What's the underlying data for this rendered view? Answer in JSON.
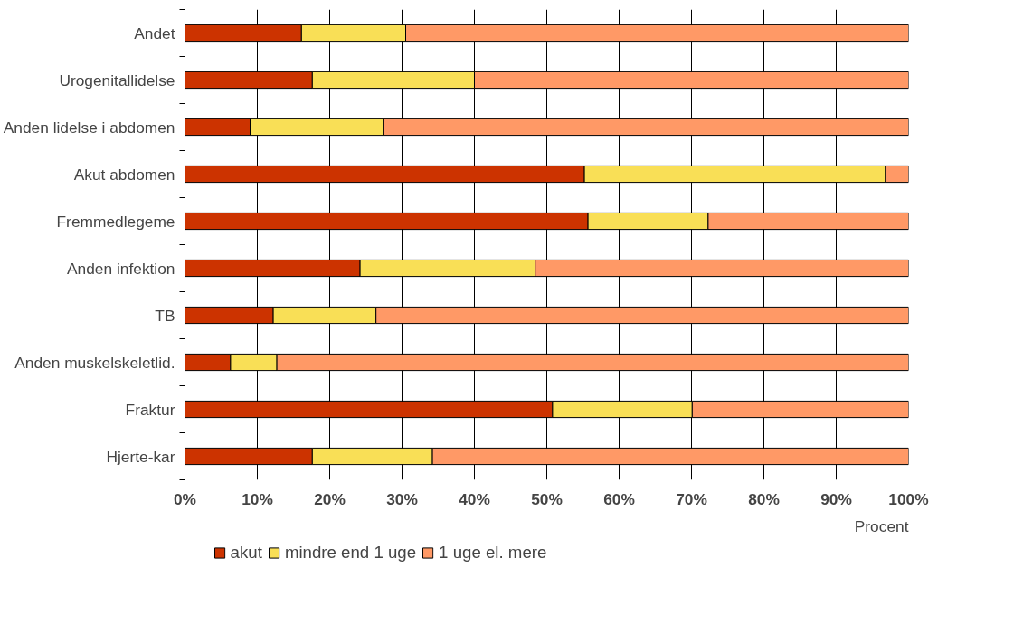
{
  "chart_data": {
    "type": "bar",
    "orientation": "horizontal",
    "stacked": true,
    "categories": [
      "Andet",
      "Urogenitallidelse",
      "Anden lidelse i abdomen",
      "Akut abdomen",
      "Fremmedlegeme",
      "Anden infektion",
      "TB",
      "Anden muskelskeletlid.",
      "Fraktur",
      "Hjerte-kar"
    ],
    "series": [
      {
        "name": "akut",
        "color": "#cc3300",
        "values": [
          16.1,
          17.6,
          9.0,
          55.2,
          55.7,
          24.2,
          12.2,
          6.3,
          50.8,
          17.6
        ]
      },
      {
        "name": "mindre end 1 uge",
        "color": "#f9df56",
        "values": [
          14.4,
          22.4,
          18.4,
          41.6,
          16.6,
          24.2,
          14.2,
          6.4,
          19.3,
          16.6
        ]
      },
      {
        "name": "1 uge el. mere",
        "color": "#ff9966",
        "values": [
          69.5,
          60.0,
          72.6,
          3.2,
          27.7,
          51.6,
          73.6,
          87.3,
          29.9,
          65.8
        ]
      }
    ],
    "xlim": [
      0,
      100
    ],
    "xticks": [
      {
        "value": 0,
        "label": "0%"
      },
      {
        "value": 10,
        "label": "10%"
      },
      {
        "value": 20,
        "label": "20%"
      },
      {
        "value": 30,
        "label": "30%"
      },
      {
        "value": 40,
        "label": "40%"
      },
      {
        "value": 50,
        "label": "50%"
      },
      {
        "value": 60,
        "label": "60%"
      },
      {
        "value": 70,
        "label": "70%"
      },
      {
        "value": 80,
        "label": "80%"
      },
      {
        "value": 90,
        "label": "90%"
      },
      {
        "value": 100,
        "label": "100%"
      }
    ],
    "xlabel": "Procent",
    "grid": "x",
    "legend": "bottom"
  }
}
